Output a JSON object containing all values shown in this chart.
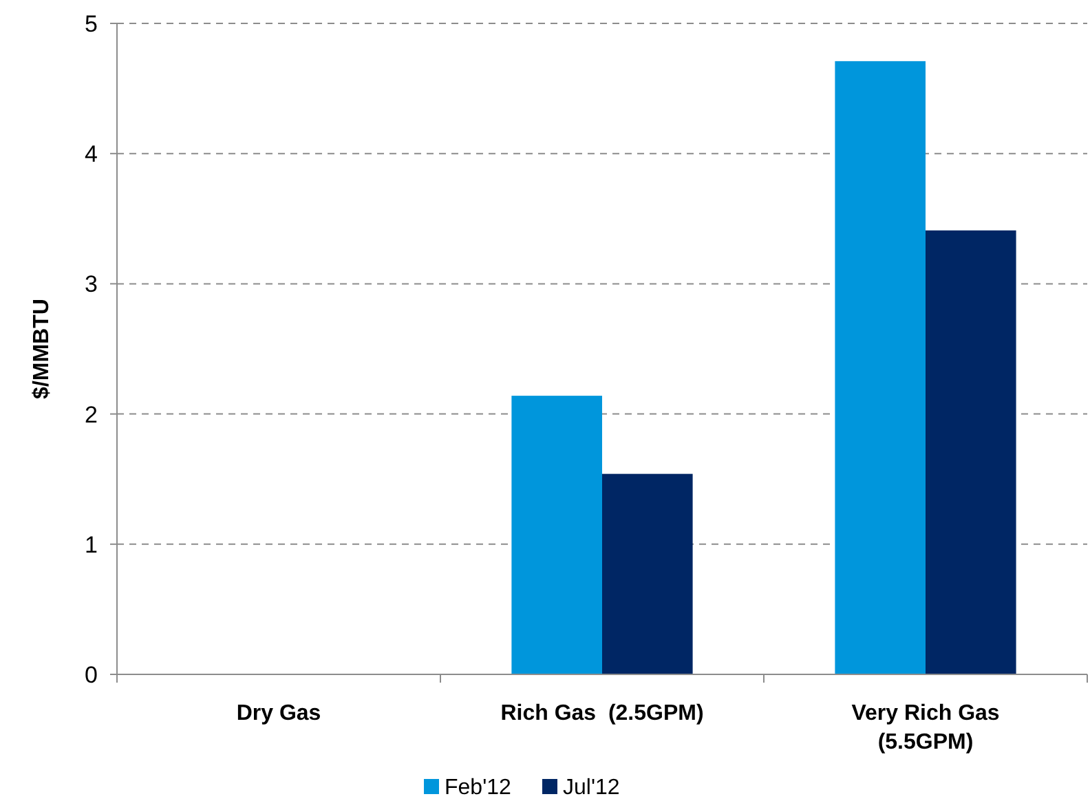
{
  "chart_data": {
    "type": "bar",
    "ylabel": "$/MMBTU",
    "categories": [
      "Dry Gas",
      "Rich Gas  (2.5GPM)",
      "Very Rich Gas (5.5GPM)"
    ],
    "series": [
      {
        "name": "Feb'12",
        "color": "#0096dc",
        "values": [
          0,
          2.14,
          4.71
        ]
      },
      {
        "name": "Jul'12",
        "color": "#002664",
        "values": [
          0,
          1.54,
          3.41
        ]
      }
    ],
    "ylim": [
      0,
      5
    ],
    "yticks": [
      0,
      1,
      2,
      3,
      4,
      5
    ],
    "grid": "y",
    "legend": "bottom"
  }
}
